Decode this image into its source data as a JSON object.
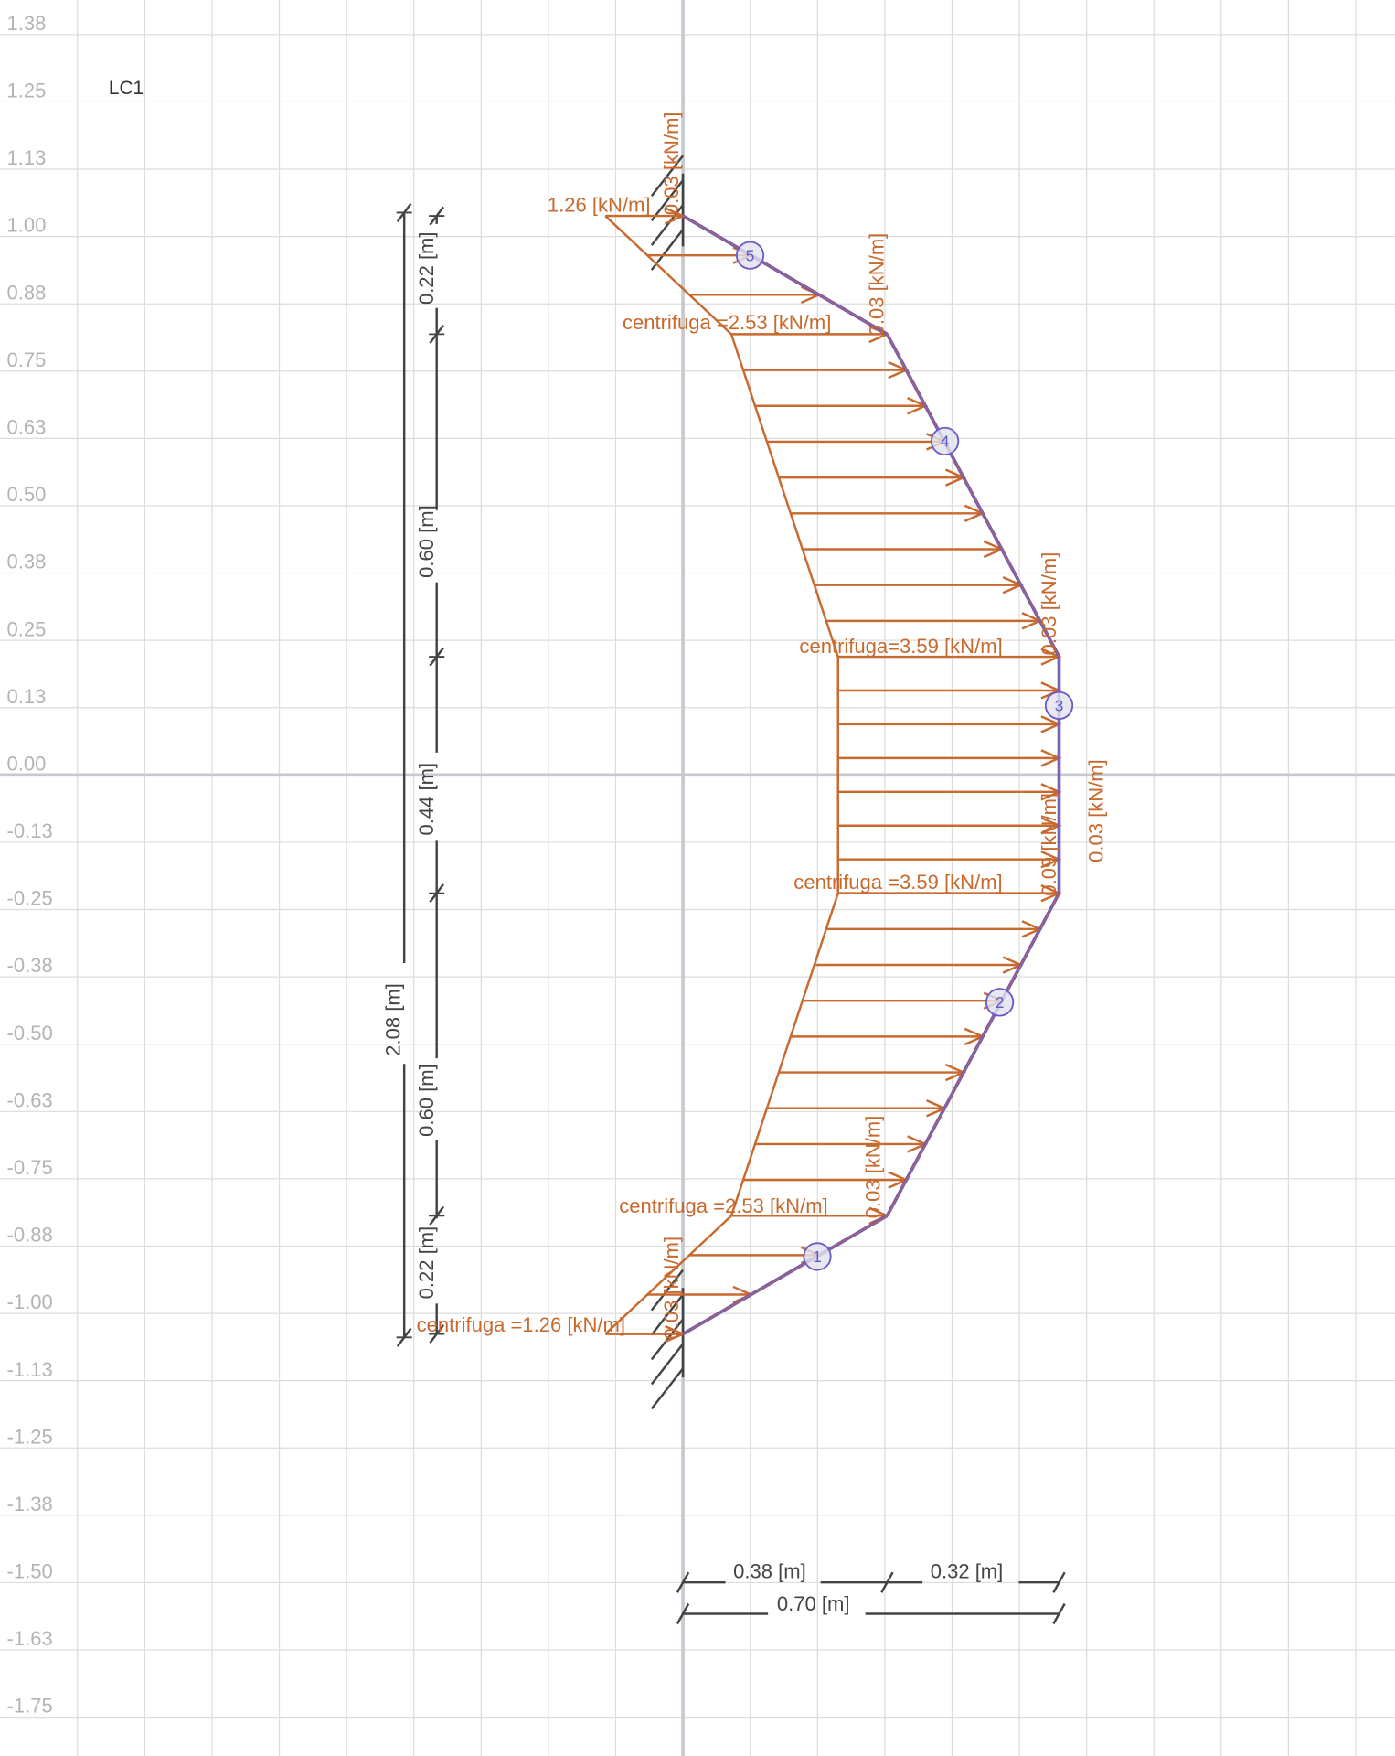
{
  "load_case": "LC1",
  "y_axis_ticks": [
    "1.38",
    "1.25",
    "1.13",
    "1.00",
    "0.88",
    "0.75",
    "0.63",
    "0.50",
    "0.38",
    "0.25",
    "0.13",
    "0.00",
    "-0.13",
    "-0.25",
    "-0.38",
    "-0.50",
    "-0.63",
    "-0.75",
    "-0.88",
    "-1.00",
    "-1.13",
    "-1.25",
    "-1.38",
    "-1.50",
    "-1.63",
    "-1.75"
  ],
  "colors": {
    "load": "#c8692e",
    "member": "#6a5ac8",
    "grid": "#dcdcdc",
    "axis": "#c8c8d0",
    "dimension": "#444444"
  },
  "structure": {
    "nodes_m": [
      [
        0,
        1.04
      ],
      [
        0.38,
        0.82
      ],
      [
        0.7,
        0.22
      ],
      [
        0.7,
        -0.22
      ],
      [
        0.38,
        -0.82
      ],
      [
        0,
        -1.04
      ]
    ],
    "element_labels": [
      "5",
      "4",
      "3",
      "2",
      "1"
    ],
    "node_loads_kNm": [
      1.26,
      2.53,
      3.59,
      3.59,
      2.53,
      1.26
    ]
  },
  "load_labels": {
    "top": "1.26 [kN/m]",
    "n2": "centrifuga =2.53 [kN/m]",
    "n3": "centrifuga=3.59 [kN/m]",
    "n4": "centrifuga =3.59 [kN/m]",
    "n5": "centrifuga =2.53 [kN/m]",
    "bottom": "centrifuga =1.26 [kN/m]"
  },
  "axial_labels": [
    "0.03 [kN/m]",
    "0.03 [kN/m]",
    "0.03 [kN/m]",
    "0.09 [kN/m]",
    "0.03 [kN/m]",
    "0.03 [kN/m]",
    "0.03 [kN/m]"
  ],
  "dimensions": {
    "total_height": "2.08 [m]",
    "segments": [
      "0.22 [m]",
      "0.60 [m]",
      "0.44 [m]",
      "0.60 [m]",
      "0.22 [m]"
    ],
    "width_a": "0.38 [m]",
    "width_b": "0.32 [m]",
    "width_total": "0.70 [m]"
  }
}
